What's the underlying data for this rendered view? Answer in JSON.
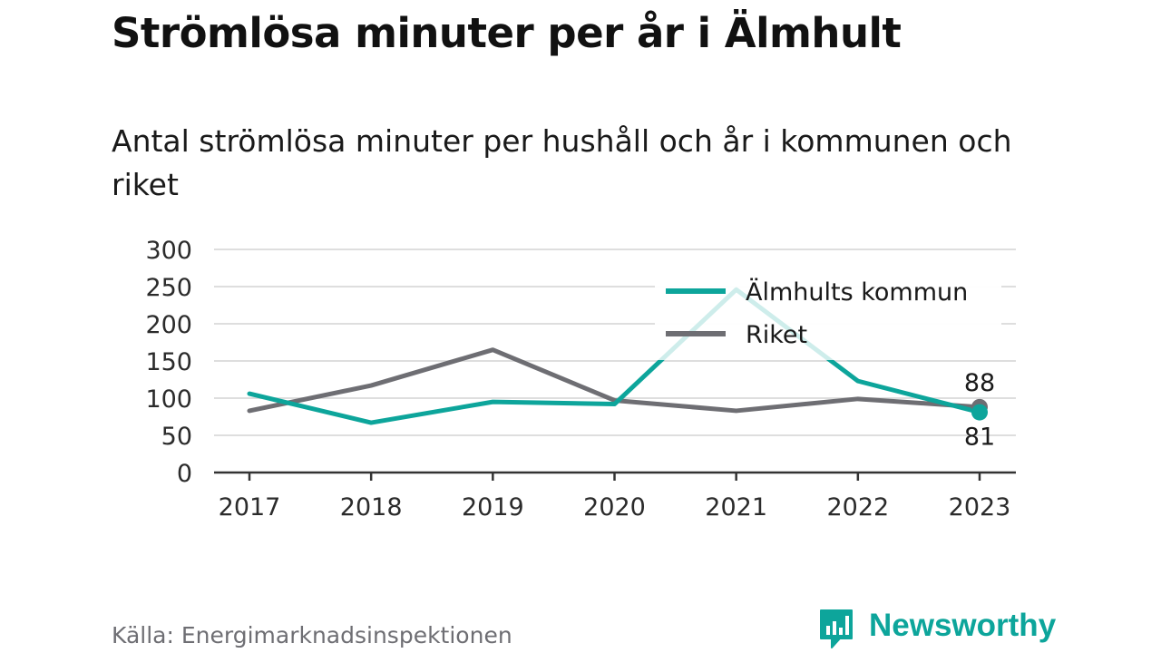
{
  "header": {
    "title": "Strömlösa minuter per år i Älmhult",
    "subtitle": "Antal strömlösa minuter per hushåll och år i kommunen och riket"
  },
  "footer": {
    "source": "Källa: Energimarknadsinspektionen",
    "brand": "Newsworthy",
    "logo_icon": "bar-chart-speech-bubble-icon"
  },
  "colors": {
    "kommun": "#0da59b",
    "riket": "#6e6e73",
    "grid": "#dedede",
    "axis": "#333333",
    "brand": "#0da59b"
  },
  "chart_data": {
    "type": "line",
    "categories": [
      "2017",
      "2018",
      "2019",
      "2020",
      "2021",
      "2022",
      "2023"
    ],
    "series": [
      {
        "name": "Älmhults kommun",
        "values": [
          106,
          67,
          95,
          92,
          246,
          123,
          81
        ],
        "color": "#0da59b"
      },
      {
        "name": "Riket",
        "values": [
          83,
          117,
          165,
          97,
          83,
          99,
          88
        ],
        "color": "#6e6e73"
      }
    ],
    "ylim": [
      0,
      300
    ],
    "yticks": [
      0,
      50,
      100,
      150,
      200,
      250,
      300
    ],
    "grid": true,
    "legend": "top-right",
    "end_labels": [
      {
        "series": "Riket",
        "text": "88",
        "position": "above"
      },
      {
        "series": "Älmhults kommun",
        "text": "81",
        "position": "below"
      }
    ]
  }
}
